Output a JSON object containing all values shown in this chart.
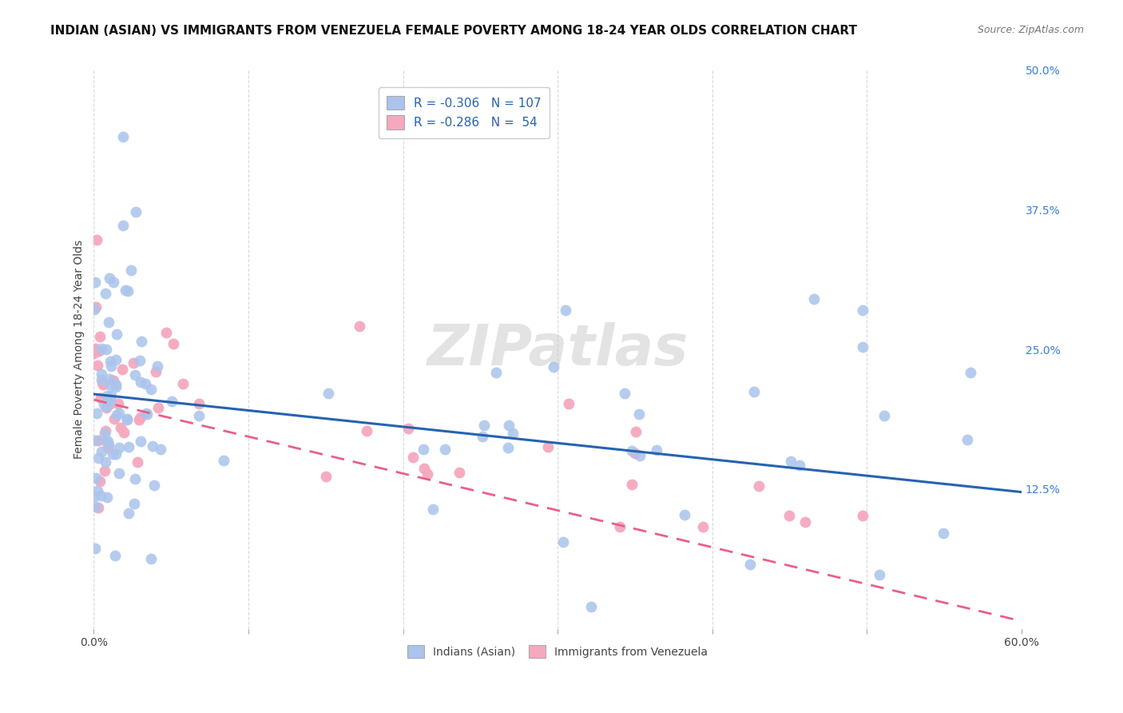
{
  "title": "INDIAN (ASIAN) VS IMMIGRANTS FROM VENEZUELA FEMALE POVERTY AMONG 18-24 YEAR OLDS CORRELATION CHART",
  "source": "Source: ZipAtlas.com",
  "ylabel": "Female Poverty Among 18-24 Year Olds",
  "xlim": [
    0.0,
    0.6
  ],
  "ylim": [
    0.0,
    0.5
  ],
  "indian_R": "-0.306",
  "indian_N": "107",
  "venezuela_R": "-0.286",
  "venezuela_N": "54",
  "indian_color": "#aac4ec",
  "indian_line_color": "#2563b0",
  "venezuela_color": "#f5a8be",
  "venezuela_line_color": "#e8608a",
  "background_color": "#ffffff",
  "watermark_text": "ZIPatlas",
  "grid_color": "#d0d0d0",
  "title_fontsize": 11,
  "tick_fontsize": 10,
  "right_tick_color": "#3a7fd5",
  "label_color": "#444444"
}
